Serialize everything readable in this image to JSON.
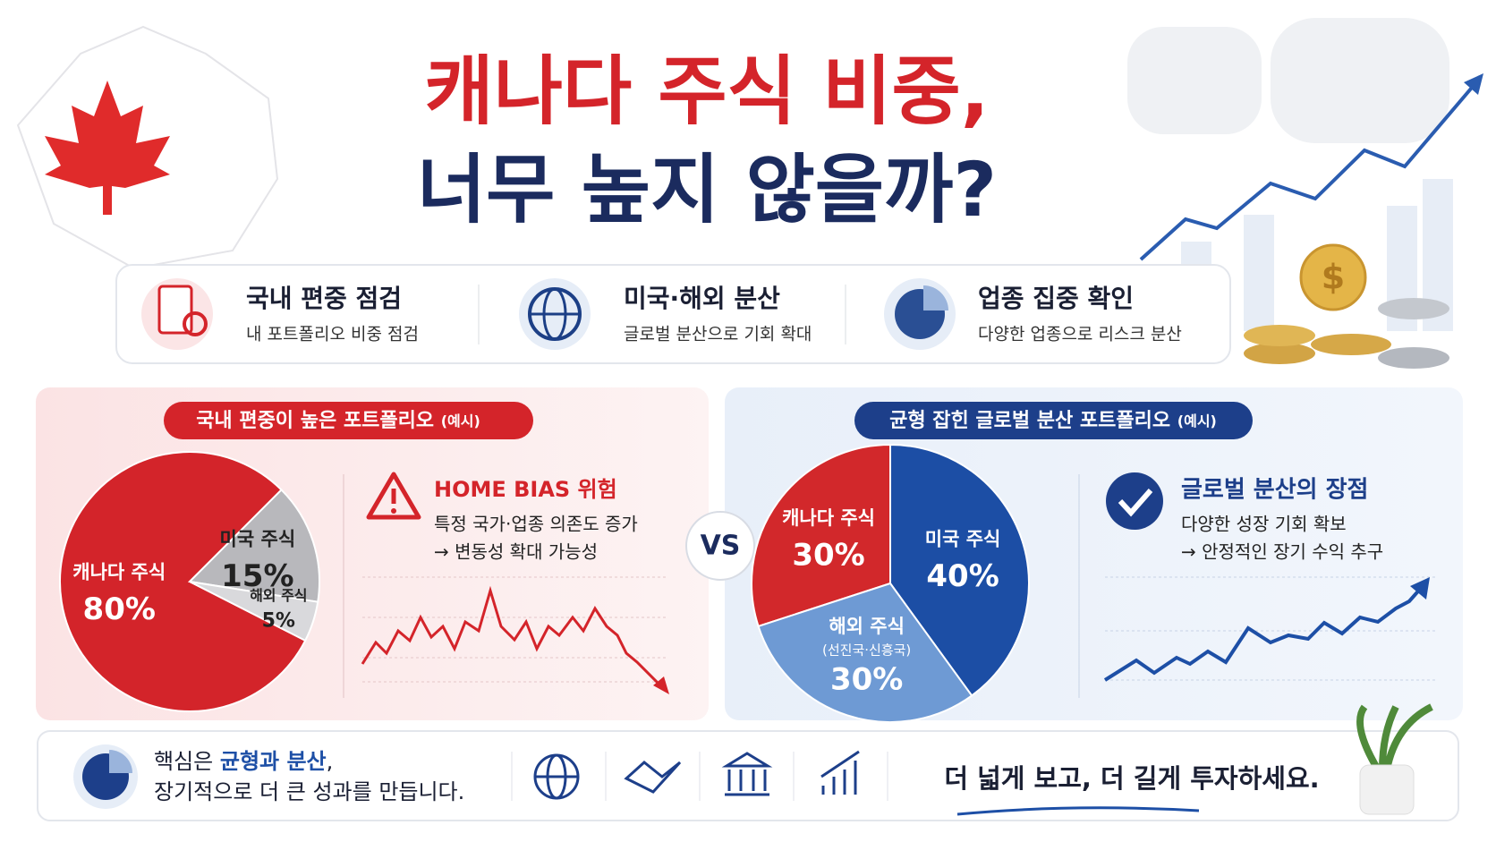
{
  "title": {
    "line1": "캐나다 주식 비중,",
    "line2": "너무 높지 않을까?"
  },
  "features": [
    {
      "title": "국내 편중 점검",
      "subtitle": "내 포트폴리오 비중 점검"
    },
    {
      "title": "미국·해외 분산",
      "subtitle": "글로벌 분산으로 기회 확대"
    },
    {
      "title": "업종 집중 확인",
      "subtitle": "다양한 업종으로 리스크 분산"
    }
  ],
  "left_panel": {
    "heading": "국내 편중이 높은 포트폴리오",
    "heading_note": "(예시)",
    "point_title": "HOME BIAS 위험",
    "point_lines": [
      "특정 국가·업종 의존도 증가",
      "→ 변동성 확대 가능성"
    ]
  },
  "vs": "VS",
  "right_panel": {
    "heading": "균형 잡힌 글로벌 분산 포트폴리오",
    "heading_note": "(예시)",
    "point_title": "글로벌 분산의 장점",
    "point_lines": [
      "다양한 성장 기회 확보",
      "→ 안정적인 장기 수익 추구"
    ]
  },
  "chart_data": [
    {
      "type": "pie",
      "categories": [
        "캐나다 주식",
        "미국 주식",
        "해외 주식"
      ],
      "category_notes": [
        null,
        null,
        null
      ],
      "values": [
        80,
        15,
        5
      ],
      "value_labels": [
        "80%",
        "15%",
        "5%"
      ],
      "colors": [
        "#d3242a",
        "#b8b8bc",
        "#d9d9dc"
      ],
      "label_colors": [
        "#ffffff",
        "#222222",
        "#222222"
      ]
    },
    {
      "type": "pie",
      "categories": [
        "캐나다 주식",
        "미국 주식",
        "해외 주식"
      ],
      "category_notes": [
        null,
        null,
        "(선진국·신흥국)"
      ],
      "values": [
        30,
        40,
        30
      ],
      "value_labels": [
        "30%",
        "40%",
        "30%"
      ],
      "colors": [
        "#d2282b",
        "#1c4ea5",
        "#6e9ad4"
      ],
      "label_colors": [
        "#ffffff",
        "#ffffff",
        "#ffffff"
      ]
    }
  ],
  "footer": {
    "line1_prefix": "핵심은 ",
    "line1_highlight": "균형과 분산",
    "line1_suffix": ",",
    "line2": "장기적으로 더 큰 성과를 만듭니다.",
    "slogan": "더 넓게 보고, 더 길게 투자하세요."
  }
}
